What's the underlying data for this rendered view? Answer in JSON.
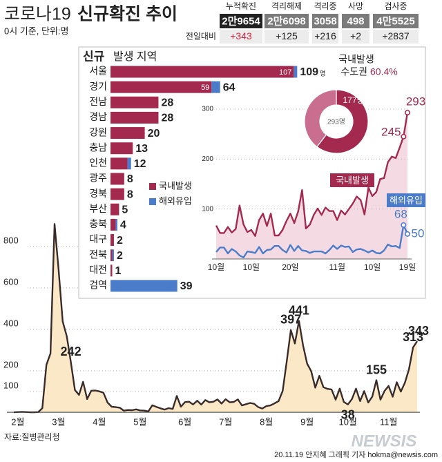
{
  "header": {
    "title": [
      "코로나19",
      "신규확진 추이"
    ],
    "subtitle": "0시 기준, 단위:명"
  },
  "stats": {
    "headers": [
      "누적확진",
      "격리해제",
      "격리중",
      "사망",
      "검사중"
    ],
    "values": [
      "2만9654",
      "2만6098",
      "3058",
      "498",
      "4만5525"
    ],
    "change_label": "전일대비",
    "changes": [
      "+343",
      "+125",
      "+216",
      "+2",
      "+2837"
    ]
  },
  "chart_data": [
    {
      "type": "area",
      "categories": [
        null,
        "2월",
        null,
        null,
        null,
        null,
        null,
        null,
        null,
        null,
        null,
        "3월",
        null,
        null,
        null,
        null,
        null,
        null,
        null,
        null,
        null,
        "4월",
        null,
        null,
        null,
        null,
        null,
        null,
        null,
        null,
        null,
        "5월",
        null,
        null,
        null,
        null,
        null,
        null,
        null,
        null,
        null,
        null,
        "6월",
        null,
        null,
        null,
        null,
        null,
        null,
        null,
        null,
        null,
        "7월",
        null,
        null,
        null,
        null,
        null,
        null,
        null,
        null,
        null,
        "8월",
        null,
        null,
        null,
        null,
        null,
        null,
        null,
        null,
        null,
        "9월",
        null,
        null,
        null,
        null,
        null,
        null,
        null,
        null,
        null,
        "10월",
        null,
        null,
        null,
        null,
        null,
        null,
        null,
        null,
        null,
        "11월",
        null,
        null,
        null,
        null,
        null,
        null,
        null
      ],
      "values": [
        0,
        1,
        2,
        1,
        0,
        0,
        1,
        20,
        229,
        284,
        909,
        686,
        438,
        367,
        242,
        107,
        84,
        147,
        64,
        104,
        105,
        101,
        94,
        47,
        27,
        25,
        22,
        8,
        11,
        10,
        14,
        9,
        8,
        4,
        34,
        26,
        19,
        13,
        20,
        16,
        79,
        27,
        49,
        51,
        38,
        56,
        37,
        59,
        48,
        51,
        62,
        42,
        63,
        48,
        50,
        62,
        33,
        39,
        45,
        41,
        25,
        18,
        30,
        33,
        43,
        54,
        103,
        246,
        397,
        332,
        441,
        323,
        235,
        198,
        119,
        176,
        121,
        113,
        110,
        61,
        114,
        50,
        38,
        64,
        114,
        54,
        102,
        47,
        76,
        155,
        61,
        103,
        127,
        75,
        145,
        100,
        143,
        208,
        313,
        343
      ],
      "value_labels": [
        null,
        null,
        null,
        null,
        null,
        null,
        null,
        null,
        null,
        null,
        null,
        null,
        null,
        null,
        "242",
        null,
        null,
        null,
        null,
        null,
        null,
        null,
        null,
        null,
        null,
        null,
        null,
        null,
        null,
        null,
        null,
        null,
        null,
        null,
        null,
        null,
        null,
        null,
        null,
        null,
        null,
        null,
        null,
        null,
        null,
        null,
        null,
        null,
        null,
        null,
        null,
        null,
        null,
        null,
        null,
        null,
        null,
        null,
        null,
        null,
        null,
        null,
        null,
        null,
        null,
        null,
        null,
        null,
        "397",
        null,
        "441",
        null,
        null,
        null,
        null,
        null,
        null,
        null,
        null,
        null,
        null,
        null,
        "38",
        null,
        null,
        null,
        null,
        null,
        null,
        "155",
        null,
        null,
        null,
        null,
        null,
        null,
        null,
        null,
        "313",
        "343"
      ],
      "color": "#3a2b2b",
      "fill": "#fbe8c6",
      "ylim": [
        0,
        950
      ],
      "yticks": [
        100,
        200,
        400,
        600,
        800
      ],
      "grid": true
    },
    {
      "type": "bar",
      "orientation": "horizontal",
      "stacked": true,
      "title": "신규",
      "subtitle": "발생 지역",
      "categories": [
        "서울",
        "경기",
        "전남",
        "경남",
        "강원",
        "충남",
        "인천",
        "광주",
        "경북",
        "부산",
        "충북",
        "대구",
        "전북",
        "대전",
        "검역"
      ],
      "series": [
        {
          "name": "국내발생",
          "color": "#a3294f",
          "values": [
            107,
            59,
            28,
            28,
            20,
            13,
            10,
            8,
            8,
            5,
            3,
            2,
            1,
            1,
            0
          ],
          "value_labels": [
            "107",
            "59",
            null,
            null,
            null,
            null,
            null,
            null,
            null,
            null,
            null,
            null,
            null,
            null,
            null
          ]
        },
        {
          "name": "해외유입",
          "color": "#4a7cc9",
          "values": [
            2,
            5,
            0,
            0,
            0,
            0,
            2,
            0,
            0,
            0,
            1,
            0,
            1,
            0,
            39
          ]
        }
      ],
      "totals": [
        109,
        64,
        28,
        28,
        20,
        13,
        12,
        8,
        8,
        5,
        4,
        2,
        2,
        1,
        39
      ],
      "total_unit": "명",
      "xlim": [
        0,
        110
      ]
    },
    {
      "type": "pie",
      "title": "국내발생",
      "categories": [
        "수도권",
        null
      ],
      "share": {
        "value": 60.4,
        "label": "60.4%"
      },
      "values": [
        177,
        116
      ],
      "value_labels": [
        "177명",
        null
      ],
      "colors": [
        "#a3294f",
        "#c96e8e"
      ],
      "total": {
        "value": 293,
        "label": "293명"
      }
    },
    {
      "type": "line",
      "categories": [
        "10월",
        null,
        null,
        null,
        null,
        null,
        null,
        null,
        null,
        "10일",
        null,
        null,
        null,
        null,
        null,
        null,
        null,
        null,
        null,
        "20일",
        null,
        null,
        null,
        null,
        null,
        null,
        null,
        null,
        null,
        null,
        null,
        "11월",
        null,
        null,
        null,
        null,
        null,
        null,
        null,
        null,
        "10일",
        null,
        null,
        null,
        null,
        null,
        null,
        null,
        null,
        "19일"
      ],
      "series": [
        {
          "name": "국내발생",
          "color": "#a3294f",
          "values": [
            67,
            52,
            52,
            64,
            53,
            60,
            107,
            69,
            54,
            58,
            46,
            78,
            91,
            66,
            91,
            47,
            47,
            58,
            76,
            91,
            72,
            95,
            138,
            61,
            69,
            88,
            101,
            88,
            103,
            96,
            96,
            78,
            97,
            89,
            100,
            111,
            125,
            118,
            89,
            143,
            126,
            134,
            160,
            162,
            194,
            205,
            202,
            223,
            245,
            293
          ],
          "value_labels": [
            null,
            null,
            null,
            null,
            null,
            null,
            null,
            null,
            null,
            null,
            null,
            null,
            null,
            null,
            null,
            null,
            null,
            null,
            null,
            null,
            null,
            null,
            null,
            null,
            null,
            null,
            null,
            null,
            null,
            null,
            null,
            null,
            null,
            null,
            null,
            null,
            null,
            null,
            null,
            null,
            null,
            null,
            null,
            null,
            null,
            null,
            null,
            null,
            "245",
            "293"
          ]
        },
        {
          "name": "해외유입",
          "color": "#4a7cc9",
          "values": [
            14,
            23,
            23,
            11,
            20,
            15,
            7,
            3,
            15,
            14,
            12,
            24,
            11,
            18,
            19,
            26,
            26,
            18,
            13,
            28,
            16,
            26,
            17,
            16,
            12,
            15,
            15,
            15,
            11,
            18,
            27,
            20,
            27,
            24,
            25,
            14,
            19,
            20,
            17,
            13,
            17,
            12,
            11,
            17,
            29,
            25,
            26,
            22,
            68,
            50
          ],
          "value_labels": [
            null,
            null,
            null,
            null,
            null,
            null,
            null,
            null,
            null,
            null,
            null,
            null,
            null,
            null,
            null,
            null,
            null,
            null,
            null,
            null,
            null,
            null,
            null,
            null,
            null,
            null,
            null,
            null,
            null,
            null,
            null,
            null,
            null,
            null,
            null,
            null,
            null,
            null,
            null,
            null,
            null,
            null,
            null,
            null,
            null,
            null,
            null,
            null,
            "68",
            "50"
          ]
        }
      ],
      "area_fill": "#f4dbe3",
      "ylim": [
        0,
        300
      ],
      "yticks": [
        100,
        200,
        300
      ],
      "grid": true
    }
  ],
  "footer": {
    "source": "자료:질병관리청",
    "credit": "20.11.19 안지혜 그래픽 기자 hokma@newsis.com",
    "watermark": "NEWSIS"
  }
}
